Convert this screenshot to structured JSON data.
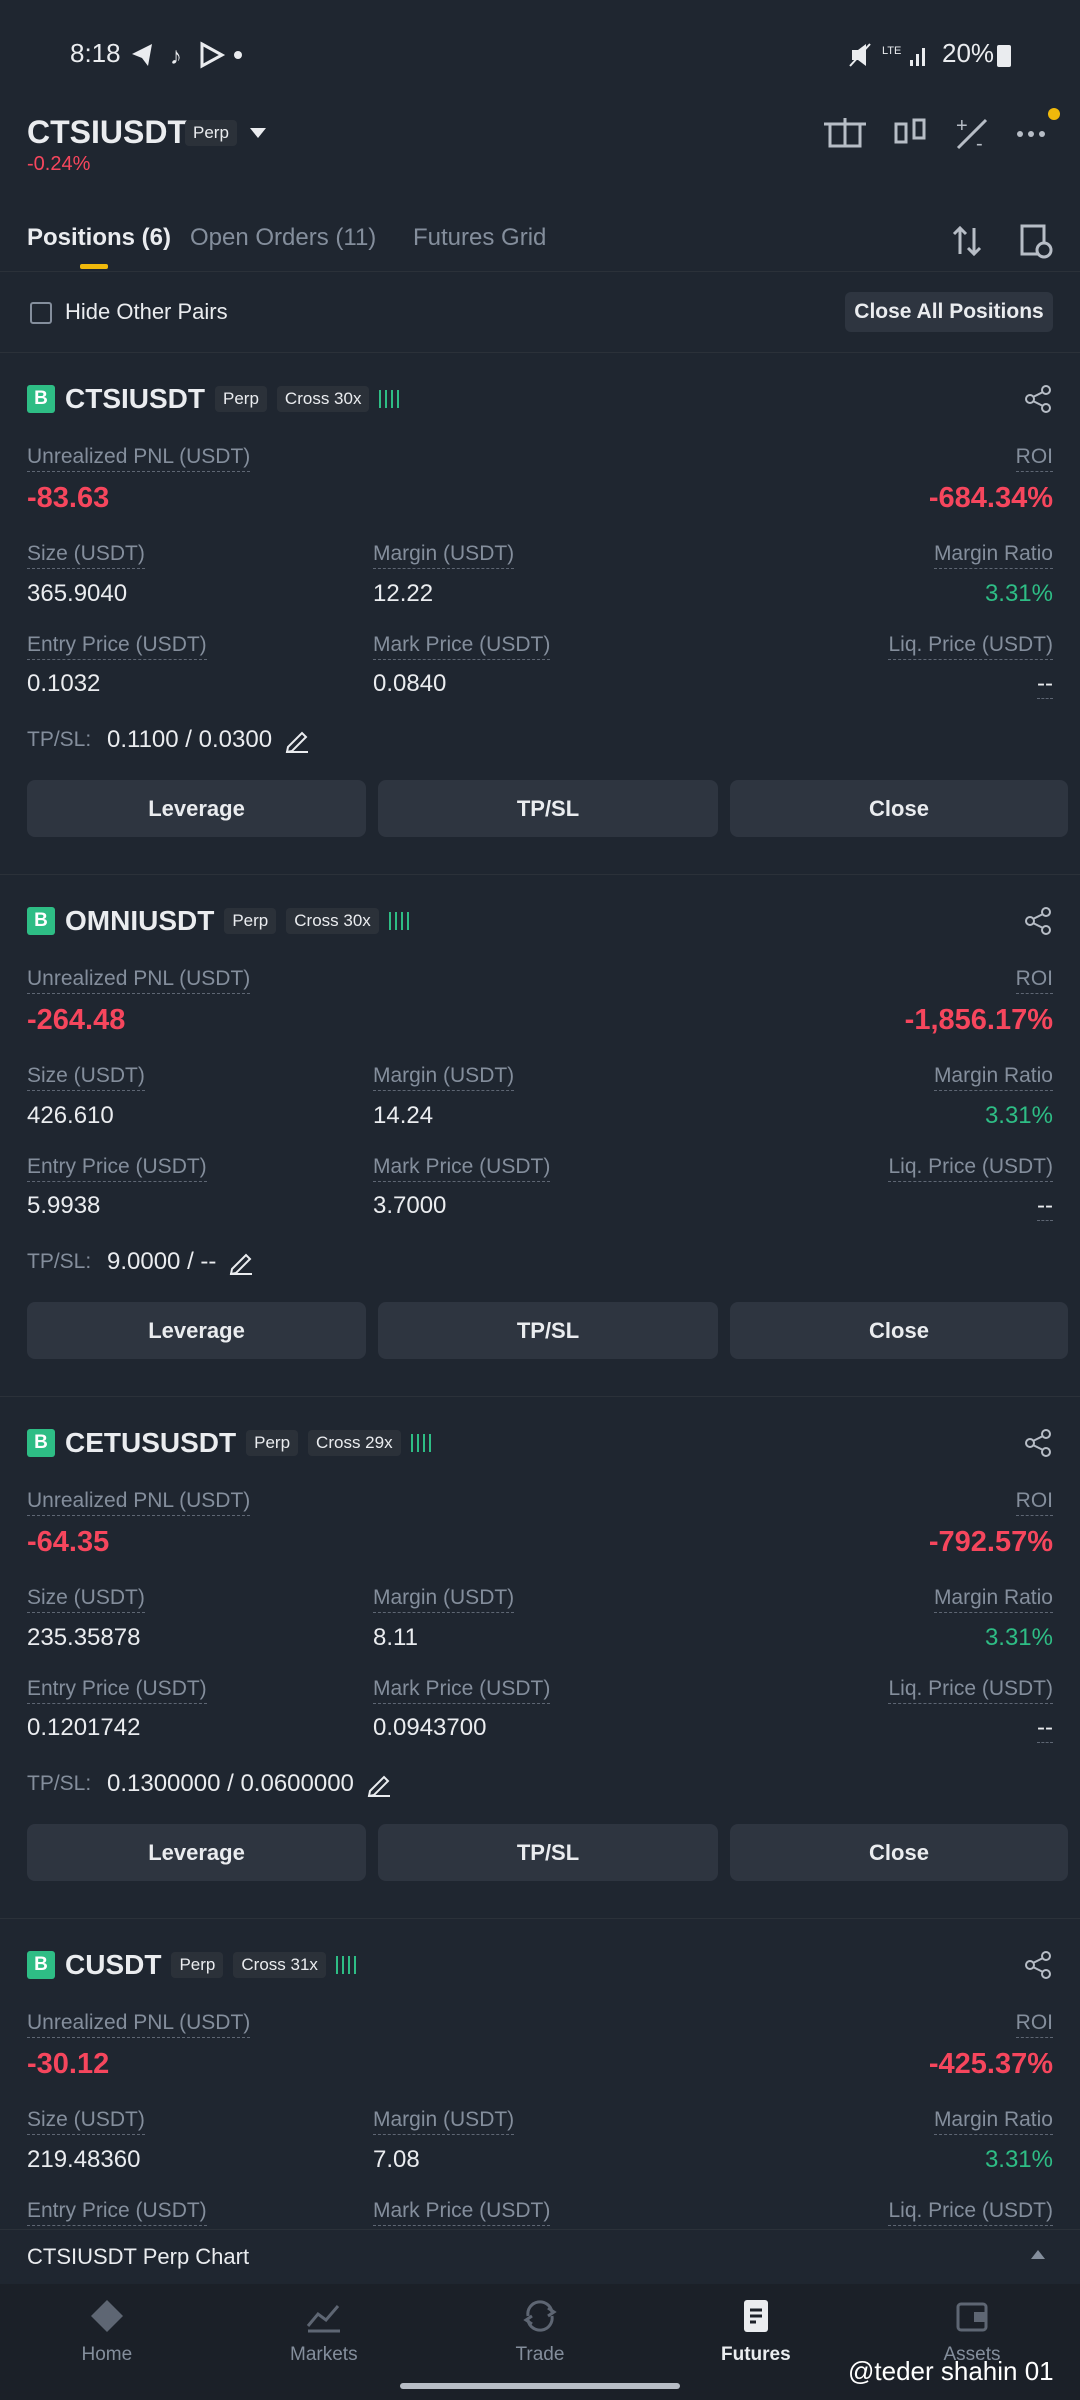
{
  "status_bar": {
    "time": "8:18",
    "battery": "20%"
  },
  "header": {
    "symbol": "CTSIUSDT",
    "badge": "Perp",
    "change": "-0.24%"
  },
  "tabs": [
    "Positions (6)",
    "Open Orders (11)",
    "Futures Grid"
  ],
  "toolbar": {
    "hide_other_pairs": "Hide Other Pairs",
    "close_all": "Close All Positions"
  },
  "labels": {
    "pnl": "Unrealized PNL (USDT)",
    "roi": "ROI",
    "size": "Size (USDT)",
    "margin": "Margin (USDT)",
    "margin_ratio": "Margin Ratio",
    "entry_price": "Entry Price (USDT)",
    "mark_price": "Mark Price (USDT)",
    "liq_price": "Liq. Price (USDT)",
    "tpsl": "TP/SL:"
  },
  "buttons": [
    "Leverage",
    "TP/SL",
    "Close"
  ],
  "positions": [
    {
      "side": "B",
      "symbol": "CTSIUSDT",
      "badge": "Perp",
      "mode": "Cross 30x",
      "pnl": "-83.63",
      "roi": "-684.34%",
      "size": "365.9040",
      "margin": "12.22",
      "margin_ratio": "3.31%",
      "entry_price": "0.1032",
      "mark_price": "0.0840",
      "liq_price": "--",
      "tpsl": "0.1100 / 0.0300"
    },
    {
      "side": "B",
      "symbol": "OMNIUSDT",
      "badge": "Perp",
      "mode": "Cross 30x",
      "pnl": "-264.48",
      "roi": "-1,856.17%",
      "size": "426.610",
      "margin": "14.24",
      "margin_ratio": "3.31%",
      "entry_price": "5.9938",
      "mark_price": "3.7000",
      "liq_price": "--",
      "tpsl": "9.0000 / --"
    },
    {
      "side": "B",
      "symbol": "CETUSUSDT",
      "badge": "Perp",
      "mode": "Cross 29x",
      "pnl": "-64.35",
      "roi": "-792.57%",
      "size": "235.35878",
      "margin": "8.11",
      "margin_ratio": "3.31%",
      "entry_price": "0.1201742",
      "mark_price": "0.0943700",
      "liq_price": "--",
      "tpsl": "0.1300000 / 0.0600000"
    },
    {
      "side": "B",
      "symbol": "CUSDT",
      "badge": "Perp",
      "mode": "Cross 31x",
      "pnl": "-30.12",
      "roi": "-425.37%",
      "size": "219.48360",
      "margin": "7.08",
      "margin_ratio": "3.31%"
    }
  ],
  "chart_bar": "CTSIUSDT Perp Chart",
  "nav": [
    "Home",
    "Markets",
    "Trade",
    "Futures",
    "Assets"
  ],
  "watermark": "@teder shahin 01"
}
